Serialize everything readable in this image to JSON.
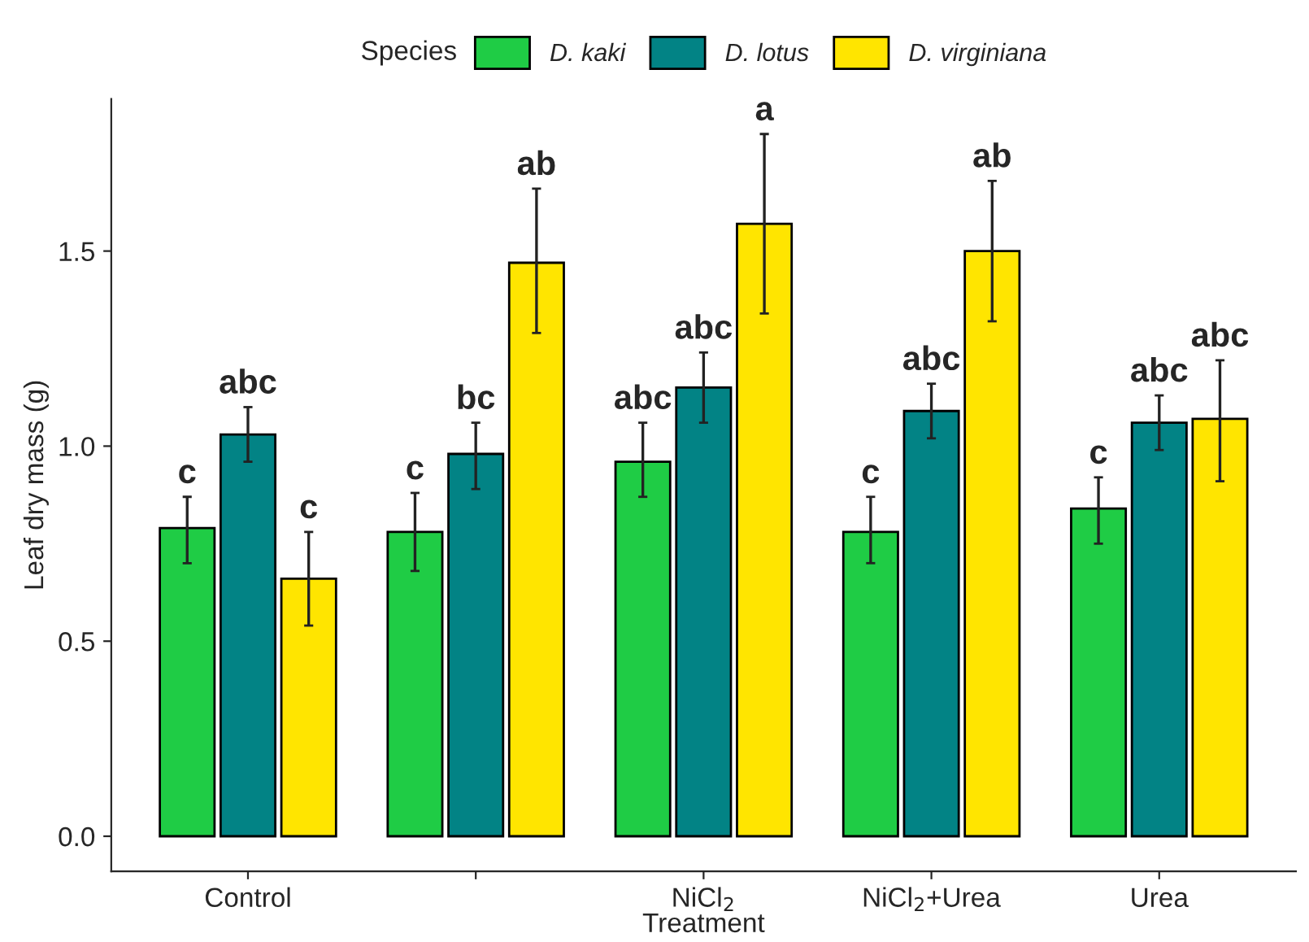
{
  "chart_data": {
    "type": "bar",
    "xlabel": "Treatment",
    "ylabel": "Leaf dry mass (g)",
    "legend_title": "Species",
    "legend": "top",
    "categories": [
      "Control",
      null,
      "NiCl$_{2}$",
      "NiCl$_{2}$+Urea",
      "Urea"
    ],
    "series": [
      {
        "name": "D. kaki",
        "color": "#1fcc45",
        "values": [
          0.79,
          0.78,
          0.96,
          0.78,
          0.84
        ],
        "errors": [
          [
            0.7,
            0.87
          ],
          [
            0.68,
            0.88
          ],
          [
            0.87,
            1.06
          ],
          [
            0.7,
            0.87
          ],
          [
            0.75,
            0.92
          ]
        ],
        "value_labels": [
          "c",
          "c",
          "abc",
          "c",
          "c"
        ]
      },
      {
        "name": "D. lotus",
        "color": "#028385",
        "values": [
          1.03,
          0.98,
          1.15,
          1.09,
          1.06
        ],
        "errors": [
          [
            0.96,
            1.1
          ],
          [
            0.89,
            1.06
          ],
          [
            1.06,
            1.24
          ],
          [
            1.02,
            1.16
          ],
          [
            0.99,
            1.13
          ]
        ],
        "value_labels": [
          "abc",
          "bc",
          "abc",
          "abc",
          "abc"
        ]
      },
      {
        "name": "D. virginiana",
        "color": "#ffe500",
        "values": [
          0.66,
          1.47,
          1.57,
          1.5,
          1.07
        ],
        "errors": [
          [
            0.54,
            0.78
          ],
          [
            1.29,
            1.66
          ],
          [
            1.34,
            1.8
          ],
          [
            1.32,
            1.68
          ],
          [
            0.91,
            1.22
          ]
        ],
        "value_labels": [
          "c",
          "ab",
          "a",
          "ab",
          "abc"
        ]
      }
    ],
    "ylim": [
      -0.09,
      1.89
    ],
    "yticks": [
      {
        "value": 0,
        "label": "0.0"
      },
      0.5,
      {
        "value": 1,
        "label": "1.0"
      },
      1.5
    ],
    "grid": false
  }
}
